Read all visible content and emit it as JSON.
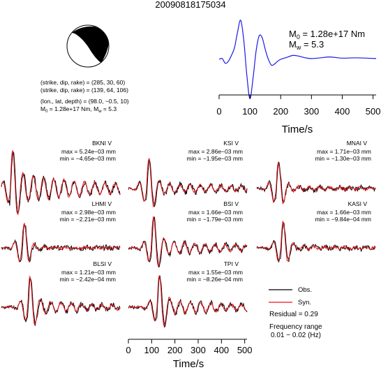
{
  "title": "20090818175034",
  "params": {
    "line1": "(strike, dip, rake) = (285, 30, 60)",
    "line2": "(strike, dip, rake) = (139, 64, 106)",
    "line3": "(lon., lat, depth) = (98.0, −0.5, 10)",
    "line4_prefix": "M",
    "line4_sub0": "0",
    "line4_mid": " = 1.28e+17 Nm, M",
    "line4_subw": "w",
    "line4_suffix": " = 5.3"
  },
  "stf_labels": {
    "m0_prefix": "M",
    "m0_sub": "0",
    "m0_value": " = 1.28e+17 Nm",
    "mw_prefix": "M",
    "mw_sub": "w",
    "mw_value": " = 5.3"
  },
  "legend": {
    "obs": "Obs.",
    "syn": "Syn.",
    "residual": "Residual = 0.29",
    "freq1": "Frequency range",
    "freq2": "0.01 − 0.02 (Hz)"
  },
  "colors": {
    "obs": "#000000",
    "syn": "#e8141c",
    "stf": "#1a1ae6",
    "beachball": "#000000"
  },
  "chart_data": [
    {
      "type": "line",
      "xlabel": "Time/s",
      "x_ticks": [
        0,
        100,
        200,
        300,
        400,
        500
      ],
      "xlim": [
        0,
        510
      ],
      "series": [
        {
          "color": "#1a1ae6",
          "x": [
            0,
            10,
            20,
            30,
            40,
            50,
            60,
            70,
            80,
            90,
            100,
            110,
            120,
            130,
            140,
            150,
            160,
            170,
            180,
            190,
            200,
            220,
            240,
            260,
            280,
            300,
            330,
            360,
            400,
            440,
            480,
            510
          ],
          "y": [
            0.0,
            0.02,
            -0.1,
            -0.05,
            0.1,
            0.3,
            0.7,
            1.0,
            0.5,
            -0.4,
            -1.0,
            -0.5,
            0.2,
            0.6,
            0.55,
            0.25,
            0.0,
            -0.15,
            -0.12,
            -0.05,
            0.0,
            0.05,
            0.1,
            0.08,
            0.04,
            0.02,
            0.04,
            0.06,
            0.03,
            0.04,
            0.03,
            0.02
          ]
        }
      ]
    },
    {
      "type": "line",
      "xlabel": "Time/s",
      "x_ticks": [
        0,
        100,
        200,
        300,
        400,
        500
      ],
      "xlim": [
        0,
        510
      ],
      "stations": [
        {
          "name": "BKNI V",
          "max": "max = 5.24e−03 mm",
          "min": "min = −4.65e−03 mm",
          "peak_t": 40,
          "decay": 0.6
        },
        {
          "name": "KSI V",
          "max": "max = 2.86e−03 mm",
          "min": "min = −1.95e−03 mm",
          "peak_t": 80,
          "decay": 0.25
        },
        {
          "name": "MNAI V",
          "max": "max = 1.71e−03 mm",
          "min": "min = −1.30e−03 mm",
          "peak_t": 85,
          "decay": 0.1
        },
        {
          "name": "LHMI V",
          "max": "max = 2.98e−03 mm",
          "min": "min = −2.21e−03 mm",
          "peak_t": 90,
          "decay": 0.05
        },
        {
          "name": "BSI V",
          "max": "max = 1.66e−03 mm",
          "min": "min = −1.79e−03 mm",
          "peak_t": 100,
          "decay": 0.3
        },
        {
          "name": "KASI V",
          "max": "max = 1.66e−03 mm",
          "min": "min = −9.84e−04 mm",
          "peak_t": 105,
          "decay": 0.08
        },
        {
          "name": "BLSI V",
          "max": "max = 1.21e−03 mm",
          "min": "min = −2.42e−04 mm",
          "peak_t": 115,
          "decay": 0.25
        },
        {
          "name": "TPI V",
          "max": "max = 1.55e−03 mm",
          "min": "min = −8.26e−04 mm",
          "peak_t": 125,
          "decay": 0.3
        }
      ]
    }
  ]
}
